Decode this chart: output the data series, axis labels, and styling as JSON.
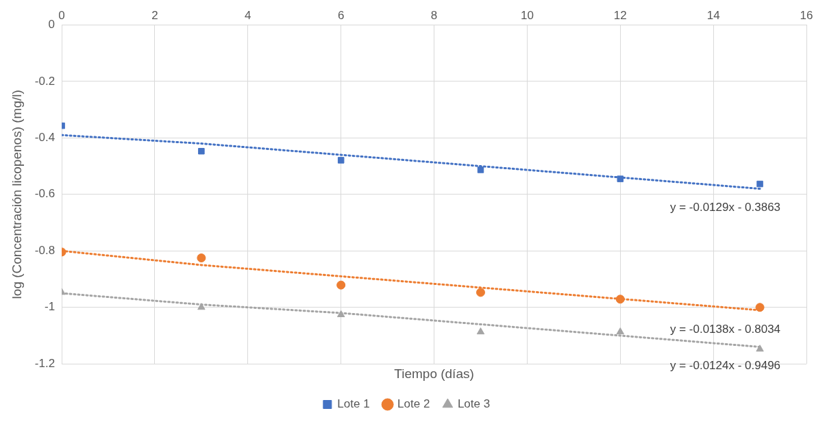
{
  "chart_data": {
    "type": "scatter",
    "xlabel": "Tiempo (días)",
    "ylabel": "log (Concentración licopenos) (mg/l)",
    "xlim": [
      0,
      16
    ],
    "xticks": [
      0,
      2,
      4,
      6,
      8,
      10,
      12,
      14,
      16
    ],
    "ylim": [
      -1.2,
      0
    ],
    "yticks": [
      -1.2,
      -1,
      -0.8,
      -0.6,
      -0.4,
      -0.2,
      0
    ],
    "grid": true,
    "legend": "bottom",
    "x": [
      0,
      3,
      6,
      9,
      12,
      15
    ],
    "series": [
      {
        "name": "Lote 1",
        "color": "#4472c4",
        "marker": "square",
        "values": [
          -0.357,
          -0.447,
          -0.479,
          -0.513,
          -0.545,
          -0.563
        ]
      },
      {
        "name": "Lote 2",
        "color": "#ed7d31",
        "marker": "circle",
        "values": [
          -0.804,
          -0.825,
          -0.921,
          -0.947,
          -0.971,
          -1.0
        ]
      },
      {
        "name": "Lote 3",
        "color": "#a5a5a5",
        "marker": "triangle",
        "values": [
          -0.947,
          -1.0,
          -1.026,
          -1.087,
          -1.087,
          -1.148
        ]
      },
      {
        "type": "line",
        "color": "#4472c4",
        "line_style": "dotted",
        "marker": "none",
        "values": [
          -0.39,
          -0.42,
          -0.46,
          -0.5,
          -0.54,
          -0.58
        ]
      },
      {
        "type": "line",
        "color": "#ed7d31",
        "line_style": "dotted",
        "marker": "none",
        "values": [
          -0.8,
          -0.85,
          -0.89,
          -0.93,
          -0.97,
          -1.01
        ]
      },
      {
        "type": "line",
        "color": "#a5a5a5",
        "line_style": "dotted",
        "marker": "none",
        "values": [
          -0.95,
          -0.99,
          -1.02,
          -1.06,
          -1.1,
          -1.14
        ]
      }
    ],
    "annotations": [
      "y = -0.0129x - 0.3863",
      "y = -0.0138x - 0.8034",
      "y = -0.0124x - 0.9496"
    ]
  }
}
